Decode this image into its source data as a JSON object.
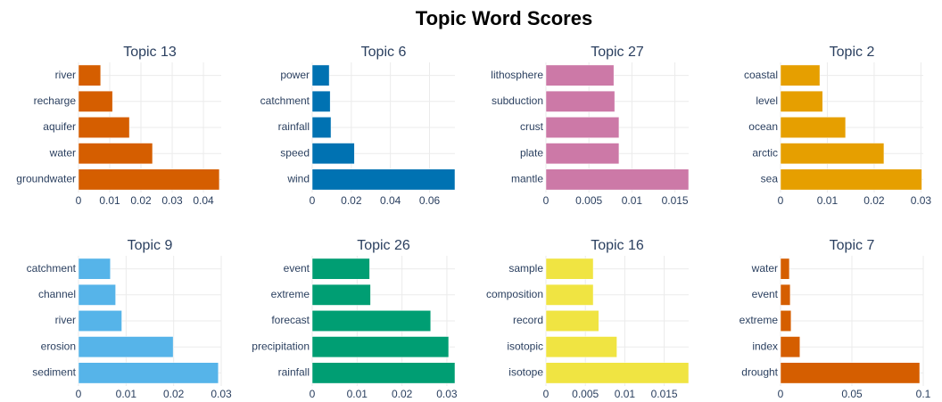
{
  "title": "Topic Word Scores",
  "chart_data": [
    {
      "type": "bar",
      "orientation": "horizontal",
      "title": "Topic 13",
      "color": "#D55E00",
      "grid": true,
      "categories": [
        "river",
        "recharge",
        "aquifer",
        "water",
        "groundwater"
      ],
      "values": [
        0.0071,
        0.0109,
        0.0163,
        0.0237,
        0.0451
      ],
      "xlim": [
        0,
        0.0457
      ],
      "xticks": [
        0,
        0.01,
        0.02,
        0.03,
        0.04
      ]
    },
    {
      "type": "bar",
      "orientation": "horizontal",
      "title": "Topic 6",
      "color": "#0072B2",
      "grid": true,
      "categories": [
        "power",
        "catchment",
        "rainfall",
        "speed",
        "wind"
      ],
      "values": [
        0.0087,
        0.0092,
        0.0096,
        0.0216,
        0.073
      ],
      "xlim": [
        0,
        0.073
      ],
      "xticks": [
        0,
        0.02,
        0.04,
        0.06
      ]
    },
    {
      "type": "bar",
      "orientation": "horizontal",
      "title": "Topic 27",
      "color": "#CC79A7",
      "grid": true,
      "categories": [
        "lithosphere",
        "subduction",
        "crust",
        "plate",
        "mantle"
      ],
      "values": [
        0.0079,
        0.008,
        0.0085,
        0.0085,
        0.0166
      ],
      "xlim": [
        0,
        0.0166
      ],
      "xticks": [
        0,
        0.005,
        0.01,
        0.015
      ]
    },
    {
      "type": "bar",
      "orientation": "horizontal",
      "title": "Topic 2",
      "color": "#E69F00",
      "grid": true,
      "categories": [
        "coastal",
        "level",
        "ocean",
        "arctic",
        "sea"
      ],
      "values": [
        0.0084,
        0.009,
        0.0139,
        0.0221,
        0.0302
      ],
      "xlim": [
        0,
        0.0305
      ],
      "xticks": [
        0,
        0.01,
        0.02,
        0.03
      ]
    },
    {
      "type": "bar",
      "orientation": "horizontal",
      "title": "Topic 9",
      "color": "#56B4E9",
      "grid": true,
      "categories": [
        "catchment",
        "channel",
        "river",
        "erosion",
        "sediment"
      ],
      "values": [
        0.0067,
        0.0078,
        0.0091,
        0.0199,
        0.0294
      ],
      "xlim": [
        0,
        0.03
      ],
      "xticks": [
        0,
        0.01,
        0.02,
        0.03
      ]
    },
    {
      "type": "bar",
      "orientation": "horizontal",
      "title": "Topic 26",
      "color": "#009E73",
      "grid": true,
      "categories": [
        "event",
        "extreme",
        "forecast",
        "precipitation",
        "rainfall"
      ],
      "values": [
        0.0128,
        0.013,
        0.0264,
        0.0304,
        0.0318
      ],
      "xlim": [
        0,
        0.0318
      ],
      "xticks": [
        0,
        0.01,
        0.02,
        0.03
      ]
    },
    {
      "type": "bar",
      "orientation": "horizontal",
      "title": "Topic 16",
      "color": "#F0E442",
      "grid": true,
      "categories": [
        "sample",
        "composition",
        "record",
        "isotopic",
        "isotope"
      ],
      "values": [
        0.006,
        0.006,
        0.0067,
        0.009,
        0.0181
      ],
      "xlim": [
        0,
        0.0181
      ],
      "xticks": [
        0,
        0.005,
        0.01,
        0.015
      ]
    },
    {
      "type": "bar",
      "orientation": "horizontal",
      "title": "Topic 7",
      "color": "#D55E00",
      "grid": true,
      "categories": [
        "water",
        "event",
        "extreme",
        "index",
        "drought"
      ],
      "values": [
        0.0062,
        0.0068,
        0.0074,
        0.0136,
        0.0975
      ],
      "xlim": [
        0,
        0.1
      ],
      "xticks": [
        0,
        0.05,
        0.1
      ]
    }
  ]
}
